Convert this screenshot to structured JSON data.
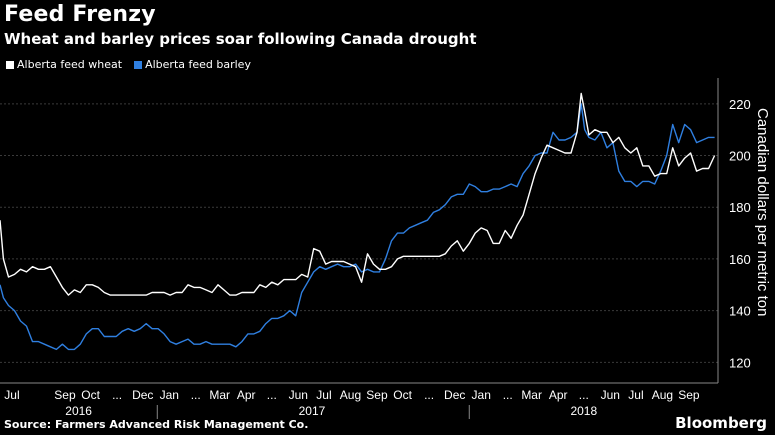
{
  "title": "Feed Frenzy",
  "subtitle": "Wheat and barley prices soar following Canada drought",
  "source": "Source: Farmers Advanced Risk Management Co.",
  "brand": "Bloomberg",
  "colors": {
    "wheat": "#ffffff",
    "barley": "#2f7fe0",
    "grid": "#3a3a3a",
    "background": "#000000"
  },
  "chart_data": {
    "type": "line",
    "title": "Feed Frenzy",
    "subtitle": "Wheat and barley prices soar following Canada drought",
    "ylabel": "Canadian dollars per metric ton",
    "ylim": [
      112,
      230
    ],
    "xlim": [
      "2016-07-01",
      "2018-10-19"
    ],
    "yticks": [
      120,
      140,
      160,
      180,
      200,
      220
    ],
    "grid": true,
    "legend_position": "top-left",
    "month_labels": [
      {
        "label": "Jul",
        "date": "2016-07-15"
      },
      {
        "label": "Sep",
        "date": "2016-09-15"
      },
      {
        "label": "Oct",
        "date": "2016-10-15"
      },
      {
        "label": "...",
        "date": "2016-11-15"
      },
      {
        "label": "Dec",
        "date": "2016-12-15"
      },
      {
        "label": "Jan",
        "date": "2017-01-15"
      },
      {
        "label": "...",
        "date": "2017-02-15"
      },
      {
        "label": "Mar",
        "date": "2017-03-15"
      },
      {
        "label": "Apr",
        "date": "2017-04-15"
      },
      {
        "label": "...",
        "date": "2017-05-15"
      },
      {
        "label": "Jun",
        "date": "2017-06-15"
      },
      {
        "label": "Jul",
        "date": "2017-07-15"
      },
      {
        "label": "Aug",
        "date": "2017-08-15"
      },
      {
        "label": "Sep",
        "date": "2017-09-15"
      },
      {
        "label": "Oct",
        "date": "2017-10-15"
      },
      {
        "label": "...",
        "date": "2017-11-15"
      },
      {
        "label": "Dec",
        "date": "2017-12-15"
      },
      {
        "label": "Jan",
        "date": "2018-01-15"
      },
      {
        "label": "...",
        "date": "2018-02-15"
      },
      {
        "label": "Mar",
        "date": "2018-03-15"
      },
      {
        "label": "Apr",
        "date": "2018-04-15"
      },
      {
        "label": "...",
        "date": "2018-05-15"
      },
      {
        "label": "Jun",
        "date": "2018-06-15"
      },
      {
        "label": "Jul",
        "date": "2018-07-15"
      },
      {
        "label": "Aug",
        "date": "2018-08-15"
      },
      {
        "label": "Sep",
        "date": "2018-09-15"
      }
    ],
    "year_labels": [
      {
        "label": "2016",
        "date": "2016-10-01"
      },
      {
        "label": "2017",
        "date": "2017-07-01"
      },
      {
        "label": "2018",
        "date": "2018-05-15"
      }
    ],
    "year_separators": [
      "2017-01-01",
      "2018-01-01"
    ],
    "series": [
      {
        "name": "Alberta feed wheat",
        "color": "#ffffff",
        "points": [
          [
            "2016-07-01",
            175
          ],
          [
            "2016-07-05",
            160
          ],
          [
            "2016-07-11",
            153
          ],
          [
            "2016-07-18",
            154
          ],
          [
            "2016-07-25",
            156
          ],
          [
            "2016-08-01",
            155
          ],
          [
            "2016-08-08",
            157
          ],
          [
            "2016-08-15",
            156
          ],
          [
            "2016-08-22",
            156
          ],
          [
            "2016-08-29",
            157
          ],
          [
            "2016-09-05",
            153
          ],
          [
            "2016-09-12",
            149
          ],
          [
            "2016-09-19",
            146
          ],
          [
            "2016-09-26",
            148
          ],
          [
            "2016-10-03",
            147
          ],
          [
            "2016-10-10",
            150
          ],
          [
            "2016-10-17",
            150
          ],
          [
            "2016-10-24",
            149
          ],
          [
            "2016-10-31",
            147
          ],
          [
            "2016-11-07",
            146
          ],
          [
            "2016-11-14",
            146
          ],
          [
            "2016-11-21",
            146
          ],
          [
            "2016-11-28",
            146
          ],
          [
            "2016-12-05",
            146
          ],
          [
            "2016-12-12",
            146
          ],
          [
            "2016-12-19",
            146
          ],
          [
            "2016-12-26",
            147
          ],
          [
            "2017-01-02",
            147
          ],
          [
            "2017-01-09",
            147
          ],
          [
            "2017-01-16",
            146
          ],
          [
            "2017-01-23",
            147
          ],
          [
            "2017-01-30",
            147
          ],
          [
            "2017-02-06",
            150
          ],
          [
            "2017-02-13",
            149
          ],
          [
            "2017-02-20",
            149
          ],
          [
            "2017-02-27",
            148
          ],
          [
            "2017-03-06",
            147
          ],
          [
            "2017-03-13",
            150
          ],
          [
            "2017-03-20",
            148
          ],
          [
            "2017-03-27",
            146
          ],
          [
            "2017-04-03",
            146
          ],
          [
            "2017-04-10",
            147
          ],
          [
            "2017-04-17",
            147
          ],
          [
            "2017-04-24",
            147
          ],
          [
            "2017-05-01",
            150
          ],
          [
            "2017-05-08",
            149
          ],
          [
            "2017-05-15",
            151
          ],
          [
            "2017-05-22",
            150
          ],
          [
            "2017-05-29",
            152
          ],
          [
            "2017-06-05",
            152
          ],
          [
            "2017-06-12",
            152
          ],
          [
            "2017-06-19",
            154
          ],
          [
            "2017-06-26",
            153
          ],
          [
            "2017-07-03",
            164
          ],
          [
            "2017-07-10",
            163
          ],
          [
            "2017-07-17",
            158
          ],
          [
            "2017-07-24",
            159
          ],
          [
            "2017-07-31",
            159
          ],
          [
            "2017-08-07",
            159
          ],
          [
            "2017-08-14",
            158
          ],
          [
            "2017-08-21",
            157
          ],
          [
            "2017-08-28",
            151
          ],
          [
            "2017-09-04",
            162
          ],
          [
            "2017-09-11",
            158
          ],
          [
            "2017-09-18",
            156
          ],
          [
            "2017-09-25",
            156
          ],
          [
            "2017-10-02",
            157
          ],
          [
            "2017-10-09",
            160
          ],
          [
            "2017-10-16",
            161
          ],
          [
            "2017-10-23",
            161
          ],
          [
            "2017-10-30",
            161
          ],
          [
            "2017-11-06",
            161
          ],
          [
            "2017-11-13",
            161
          ],
          [
            "2017-11-20",
            161
          ],
          [
            "2017-11-27",
            161
          ],
          [
            "2017-12-04",
            162
          ],
          [
            "2017-12-11",
            165
          ],
          [
            "2017-12-18",
            167
          ],
          [
            "2017-12-25",
            163
          ],
          [
            "2018-01-01",
            166
          ],
          [
            "2018-01-08",
            170
          ],
          [
            "2018-01-15",
            172
          ],
          [
            "2018-01-22",
            171
          ],
          [
            "2018-01-29",
            166
          ],
          [
            "2018-02-05",
            166
          ],
          [
            "2018-02-12",
            171
          ],
          [
            "2018-02-19",
            168
          ],
          [
            "2018-02-26",
            173
          ],
          [
            "2018-03-05",
            177
          ],
          [
            "2018-03-12",
            185
          ],
          [
            "2018-03-19",
            193
          ],
          [
            "2018-03-26",
            199
          ],
          [
            "2018-04-02",
            204
          ],
          [
            "2018-04-09",
            203
          ],
          [
            "2018-04-16",
            202
          ],
          [
            "2018-04-23",
            201
          ],
          [
            "2018-04-30",
            201
          ],
          [
            "2018-05-07",
            209
          ],
          [
            "2018-05-12",
            224
          ],
          [
            "2018-05-16",
            217
          ],
          [
            "2018-05-21",
            208
          ],
          [
            "2018-05-28",
            210
          ],
          [
            "2018-06-04",
            209
          ],
          [
            "2018-06-11",
            209
          ],
          [
            "2018-06-18",
            205
          ],
          [
            "2018-06-25",
            207
          ],
          [
            "2018-07-02",
            203
          ],
          [
            "2018-07-09",
            201
          ],
          [
            "2018-07-16",
            203
          ],
          [
            "2018-07-23",
            196
          ],
          [
            "2018-07-30",
            196
          ],
          [
            "2018-08-06",
            192
          ],
          [
            "2018-08-13",
            193
          ],
          [
            "2018-08-20",
            193
          ],
          [
            "2018-08-27",
            203
          ],
          [
            "2018-09-03",
            196
          ],
          [
            "2018-09-10",
            199
          ],
          [
            "2018-09-17",
            201
          ],
          [
            "2018-09-24",
            194
          ],
          [
            "2018-10-01",
            195
          ],
          [
            "2018-10-08",
            195
          ],
          [
            "2018-10-15",
            200
          ]
        ]
      },
      {
        "name": "Alberta feed barley",
        "color": "#2f7fe0",
        "points": [
          [
            "2016-07-01",
            150
          ],
          [
            "2016-07-05",
            145
          ],
          [
            "2016-07-11",
            142
          ],
          [
            "2016-07-18",
            140
          ],
          [
            "2016-07-25",
            136
          ],
          [
            "2016-08-01",
            134
          ],
          [
            "2016-08-08",
            128
          ],
          [
            "2016-08-15",
            128
          ],
          [
            "2016-08-22",
            127
          ],
          [
            "2016-08-29",
            126
          ],
          [
            "2016-09-05",
            125
          ],
          [
            "2016-09-12",
            127
          ],
          [
            "2016-09-19",
            125
          ],
          [
            "2016-09-26",
            125
          ],
          [
            "2016-10-03",
            127
          ],
          [
            "2016-10-10",
            131
          ],
          [
            "2016-10-17",
            133
          ],
          [
            "2016-10-24",
            133
          ],
          [
            "2016-10-31",
            130
          ],
          [
            "2016-11-07",
            130
          ],
          [
            "2016-11-14",
            130
          ],
          [
            "2016-11-21",
            132
          ],
          [
            "2016-11-28",
            133
          ],
          [
            "2016-12-05",
            132
          ],
          [
            "2016-12-12",
            133
          ],
          [
            "2016-12-19",
            135
          ],
          [
            "2016-12-26",
            133
          ],
          [
            "2017-01-02",
            133
          ],
          [
            "2017-01-09",
            131
          ],
          [
            "2017-01-16",
            128
          ],
          [
            "2017-01-23",
            127
          ],
          [
            "2017-01-30",
            128
          ],
          [
            "2017-02-06",
            129
          ],
          [
            "2017-02-13",
            127
          ],
          [
            "2017-02-20",
            127
          ],
          [
            "2017-02-27",
            128
          ],
          [
            "2017-03-06",
            127
          ],
          [
            "2017-03-13",
            127
          ],
          [
            "2017-03-20",
            127
          ],
          [
            "2017-03-27",
            127
          ],
          [
            "2017-04-03",
            126
          ],
          [
            "2017-04-10",
            128
          ],
          [
            "2017-04-17",
            131
          ],
          [
            "2017-04-24",
            131
          ],
          [
            "2017-05-01",
            132
          ],
          [
            "2017-05-08",
            135
          ],
          [
            "2017-05-15",
            137
          ],
          [
            "2017-05-22",
            137
          ],
          [
            "2017-05-29",
            138
          ],
          [
            "2017-06-05",
            140
          ],
          [
            "2017-06-12",
            138
          ],
          [
            "2017-06-19",
            147
          ],
          [
            "2017-06-26",
            151
          ],
          [
            "2017-07-03",
            155
          ],
          [
            "2017-07-10",
            157
          ],
          [
            "2017-07-17",
            156
          ],
          [
            "2017-07-24",
            157
          ],
          [
            "2017-07-31",
            158
          ],
          [
            "2017-08-07",
            157
          ],
          [
            "2017-08-14",
            157
          ],
          [
            "2017-08-21",
            158
          ],
          [
            "2017-08-28",
            155
          ],
          [
            "2017-09-04",
            156
          ],
          [
            "2017-09-11",
            155
          ],
          [
            "2017-09-18",
            155
          ],
          [
            "2017-09-25",
            160
          ],
          [
            "2017-10-02",
            167
          ],
          [
            "2017-10-09",
            170
          ],
          [
            "2017-10-16",
            170
          ],
          [
            "2017-10-23",
            172
          ],
          [
            "2017-10-30",
            173
          ],
          [
            "2017-11-06",
            174
          ],
          [
            "2017-11-13",
            175
          ],
          [
            "2017-11-20",
            178
          ],
          [
            "2017-11-27",
            179
          ],
          [
            "2017-12-04",
            181
          ],
          [
            "2017-12-11",
            184
          ],
          [
            "2017-12-18",
            185
          ],
          [
            "2017-12-25",
            185
          ],
          [
            "2018-01-01",
            189
          ],
          [
            "2018-01-08",
            188
          ],
          [
            "2018-01-15",
            186
          ],
          [
            "2018-01-22",
            186
          ],
          [
            "2018-01-29",
            187
          ],
          [
            "2018-02-05",
            187
          ],
          [
            "2018-02-12",
            188
          ],
          [
            "2018-02-19",
            189
          ],
          [
            "2018-02-26",
            188
          ],
          [
            "2018-03-05",
            193
          ],
          [
            "2018-03-12",
            196
          ],
          [
            "2018-03-19",
            200
          ],
          [
            "2018-03-26",
            201
          ],
          [
            "2018-04-02",
            201
          ],
          [
            "2018-04-09",
            209
          ],
          [
            "2018-04-16",
            206
          ],
          [
            "2018-04-23",
            206
          ],
          [
            "2018-04-30",
            207
          ],
          [
            "2018-05-07",
            209
          ],
          [
            "2018-05-12",
            220
          ],
          [
            "2018-05-16",
            210
          ],
          [
            "2018-05-21",
            207
          ],
          [
            "2018-05-28",
            206
          ],
          [
            "2018-06-04",
            209
          ],
          [
            "2018-06-11",
            203
          ],
          [
            "2018-06-18",
            205
          ],
          [
            "2018-06-25",
            194
          ],
          [
            "2018-07-02",
            190
          ],
          [
            "2018-07-09",
            190
          ],
          [
            "2018-07-16",
            188
          ],
          [
            "2018-07-23",
            190
          ],
          [
            "2018-07-30",
            190
          ],
          [
            "2018-08-06",
            189
          ],
          [
            "2018-08-13",
            194
          ],
          [
            "2018-08-20",
            200
          ],
          [
            "2018-08-27",
            212
          ],
          [
            "2018-09-03",
            205
          ],
          [
            "2018-09-10",
            212
          ],
          [
            "2018-09-17",
            210
          ],
          [
            "2018-09-24",
            205
          ],
          [
            "2018-10-01",
            206
          ],
          [
            "2018-10-08",
            207
          ],
          [
            "2018-10-15",
            207
          ]
        ]
      }
    ]
  }
}
